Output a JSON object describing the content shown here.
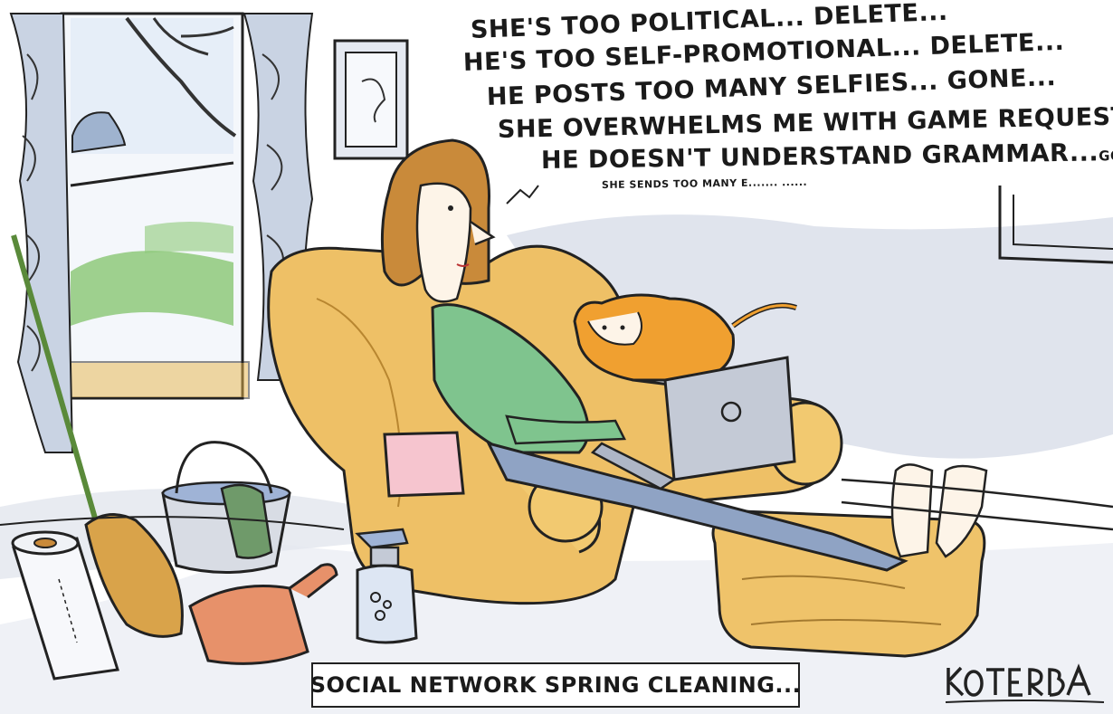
{
  "speech_lines": [
    "SHE'S TOO POLITICAL... DELETE...",
    "HE'S TOO SELF-PROMOTIONAL... DELETE...",
    "HE POSTS TOO MANY SELFIES... GONE...",
    "SHE OVERWHELMS ME WITH GAME REQUESTS... DELETE...",
    "HE DOESN'T UNDERSTAND GRAMMAR...",
    "SHE SENDS TOO MANY E....... ......"
  ],
  "speech_line5_tail": "GONE...",
  "caption": "SOCIAL NETWORK SPRING CLEANING...",
  "signature": "KOTERBA",
  "colors": {
    "sweater": "#7fc48e",
    "chair": "#e8b44a",
    "hair": "#c98a3a",
    "cat": "#f0a030",
    "grass": "#8ec97a",
    "wall_shadow": "#c9d0de",
    "laptop": "#c4cad6"
  },
  "icons": {
    "laptop": "laptop-icon",
    "cat": "cat-icon",
    "spray_bottle": "spray-bottle-icon",
    "bucket": "bucket-icon",
    "broom": "broom-icon",
    "dustpan": "dustpan-icon",
    "paper_towel": "paper-towel-icon"
  }
}
